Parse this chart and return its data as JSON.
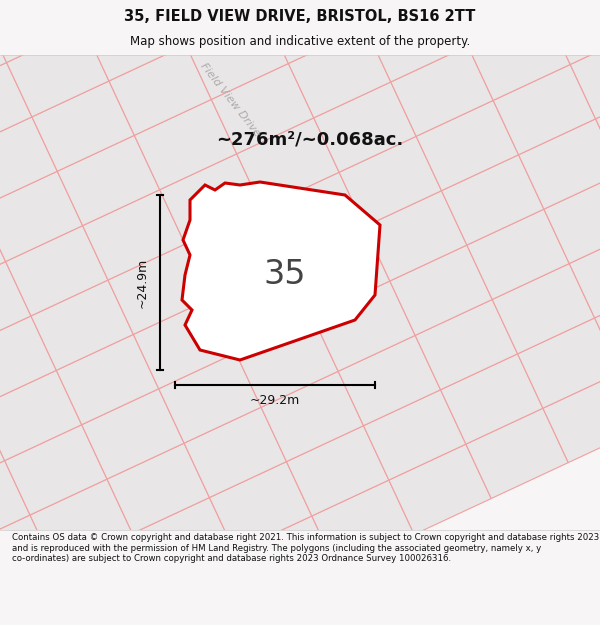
{
  "title": "35, FIELD VIEW DRIVE, BRISTOL, BS16 2TT",
  "subtitle": "Map shows position and indicative extent of the property.",
  "footer": "Contains OS data © Crown copyright and database right 2021. This information is subject to Crown copyright and database rights 2023 and is reproduced with the permission of HM Land Registry. The polygons (including the associated geometry, namely x, y co-ordinates) are subject to Crown copyright and database rights 2023 Ordnance Survey 100026316.",
  "area_label": "~276m²/~0.068ac.",
  "number_label": "35",
  "dim_height": "~24.9m",
  "dim_width": "~29.2m",
  "street_label": "Field View Drive",
  "bg_color": "#f7f5f5",
  "plot_fill": "#ffffff",
  "plot_edge": "#cc0000",
  "lot_fill": "#e8e6e6",
  "lot_edge_gray": "#c0bcbc",
  "lot_edge_pink": "#f0a0a0",
  "title_color": "#111111",
  "footer_color": "#111111",
  "street_color": "#b0aaaa",
  "dim_color": "#111111",
  "number_color": "#444444"
}
